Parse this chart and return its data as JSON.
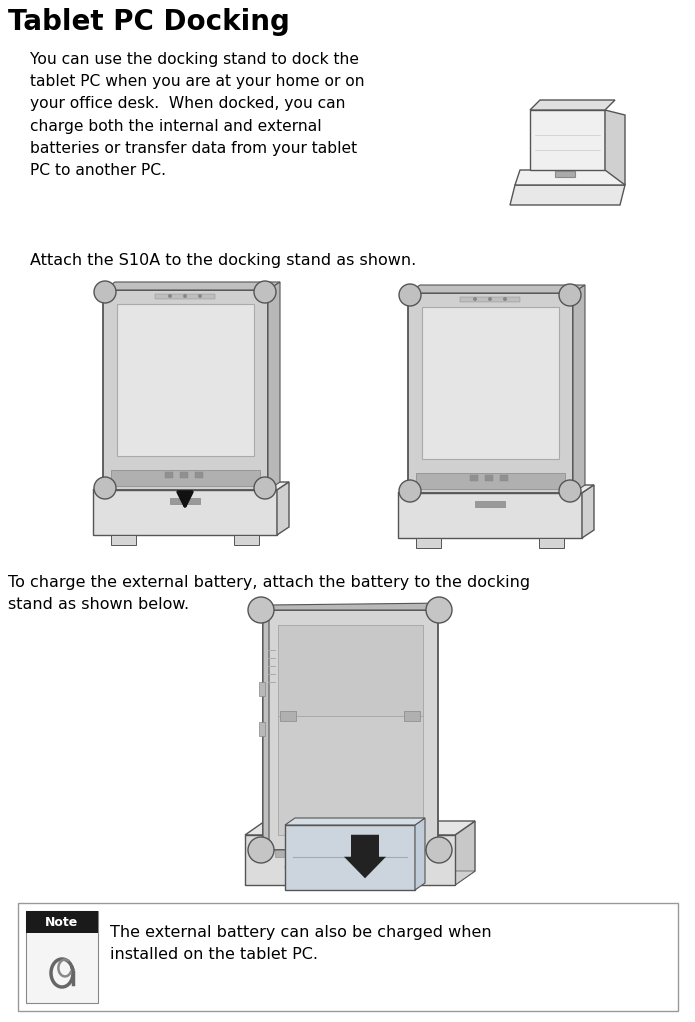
{
  "title": "Tablet PC Docking",
  "body_text_1": "You can use the docking stand to dock the\ntablet PC when you are at your home or on\nyour office desk.  When docked, you can\ncharge both the internal and external\nbatteries or transfer data from your tablet\nPC to another PC.",
  "body_text_2": "Attach the S10A to the docking stand as shown.",
  "body_text_3": "To charge the external battery, attach the battery to the docking\nstand as shown below.",
  "note_text": "The external battery can also be charged when\ninstalled on the tablet PC.",
  "bg_color": "#ffffff",
  "title_color": "#000000",
  "body_color": "#000000",
  "note_header_bg": "#1a1a1a",
  "note_header_text": "#ffffff",
  "edge_color": "#555555",
  "light_gray": "#d8d8d8",
  "mid_gray": "#b0b0b0",
  "dark_gray": "#888888",
  "screen_color": "#e8e8e8"
}
